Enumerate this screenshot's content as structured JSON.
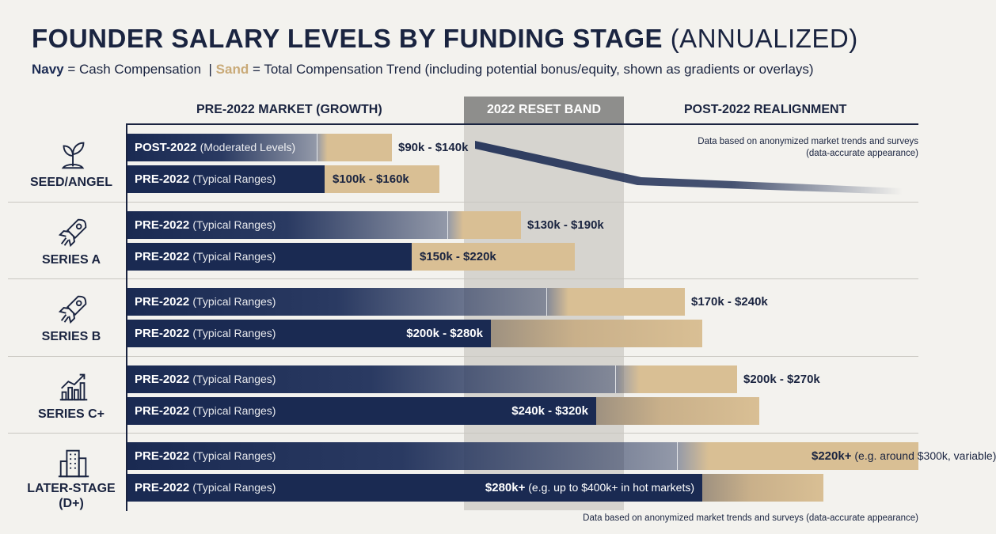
{
  "title_main": "FOUNDER SALARY LEVELS BY FUNDING STAGE",
  "title_suffix": "(ANNUALIZED)",
  "legend": {
    "navy_word": "Navy",
    "navy_desc": "= Cash Compensation",
    "divider": "|",
    "sand_word": "Sand",
    "sand_desc": "= Total Compensation Trend (including potential bonus/equity, shown as gradients or overlays)"
  },
  "columns": {
    "pre": "PRE-2022 MARKET (GROWTH)",
    "reset": "2022 RESET BAND",
    "post": "POST-2022 REALIGNMENT"
  },
  "notes": {
    "top": "Data based on anonymized market trends and surveys (data-accurate appearance)",
    "bottom": "Data based on anonymized market trends and surveys (data-accurate appearance)"
  },
  "colors": {
    "navy": "#1a2a52",
    "sand": "#d9bf94",
    "reset_band": "#8e8e8c",
    "background": "#f3f2ee"
  },
  "chart_data": {
    "type": "bar",
    "orientation": "horizontal",
    "categories": [
      "SEED/ANGEL",
      "SERIES A",
      "SERIES B",
      "SERIES C+",
      "LATER-STAGE (D+)"
    ],
    "icons": [
      "sprout-icon",
      "rocket-icon",
      "rocket-icon",
      "growth-chart-icon",
      "building-icon"
    ],
    "rows": [
      {
        "stage": 0,
        "label": "POST-2022",
        "qualifier": "(Moderated Levels)",
        "range": "$90k - $140k",
        "note": "",
        "cash_end": 0.24,
        "total_end": 0.335,
        "label_inside": false,
        "style": "gradient"
      },
      {
        "stage": 0,
        "label": "PRE-2022",
        "qualifier": "(Typical Ranges)",
        "range": "$100k - $160k",
        "note": "",
        "cash_end": 0.25,
        "total_end": 0.395,
        "label_inside": false,
        "style": "solid"
      },
      {
        "stage": 1,
        "label": "PRE-2022",
        "qualifier": "(Typical Ranges)",
        "range": "$130k - $190k",
        "note": "",
        "cash_end": 0.405,
        "total_end": 0.498,
        "label_inside": false,
        "style": "gradient"
      },
      {
        "stage": 1,
        "label": "PRE-2022",
        "qualifier": "(Typical Ranges)",
        "range": "$150k - $220k",
        "note": "",
        "cash_end": 0.36,
        "total_end": 0.566,
        "label_inside": false,
        "style": "solid"
      },
      {
        "stage": 2,
        "label": "PRE-2022",
        "qualifier": "(Typical Ranges)",
        "range": "$170k - $240k",
        "note": "",
        "cash_end": 0.53,
        "total_end": 0.705,
        "label_inside": false,
        "style": "gradient"
      },
      {
        "stage": 2,
        "label": "PRE-2022",
        "qualifier": "(Typical Ranges)",
        "range": "$200k - $280k",
        "note": "",
        "cash_end": 0.46,
        "total_end": 0.727,
        "label_inside": true,
        "style": "solid"
      },
      {
        "stage": 3,
        "label": "PRE-2022",
        "qualifier": "(Typical Ranges)",
        "range": "$200k - $270k",
        "note": "",
        "cash_end": 0.617,
        "total_end": 0.771,
        "label_inside": false,
        "style": "gradient"
      },
      {
        "stage": 3,
        "label": "PRE-2022",
        "qualifier": "(Typical Ranges)",
        "range": "$240k - $320k",
        "note": "",
        "cash_end": 0.593,
        "total_end": 0.799,
        "label_inside": true,
        "style": "solid"
      },
      {
        "stage": 4,
        "label": "PRE-2022",
        "qualifier": "(Typical Ranges)",
        "range": "$220k+",
        "note": "(e.g. around $300k, variable)",
        "cash_end": 0.695,
        "total_end": 1.0,
        "label_inside": false,
        "style": "gradient"
      },
      {
        "stage": 4,
        "label": "PRE-2022",
        "qualifier": "(Typical Ranges)",
        "range": "$280k+",
        "note": "(e.g. up to $400k+ in hot markets)",
        "cash_end": 0.727,
        "total_end": 0.88,
        "label_inside": true,
        "style": "solid"
      }
    ]
  }
}
